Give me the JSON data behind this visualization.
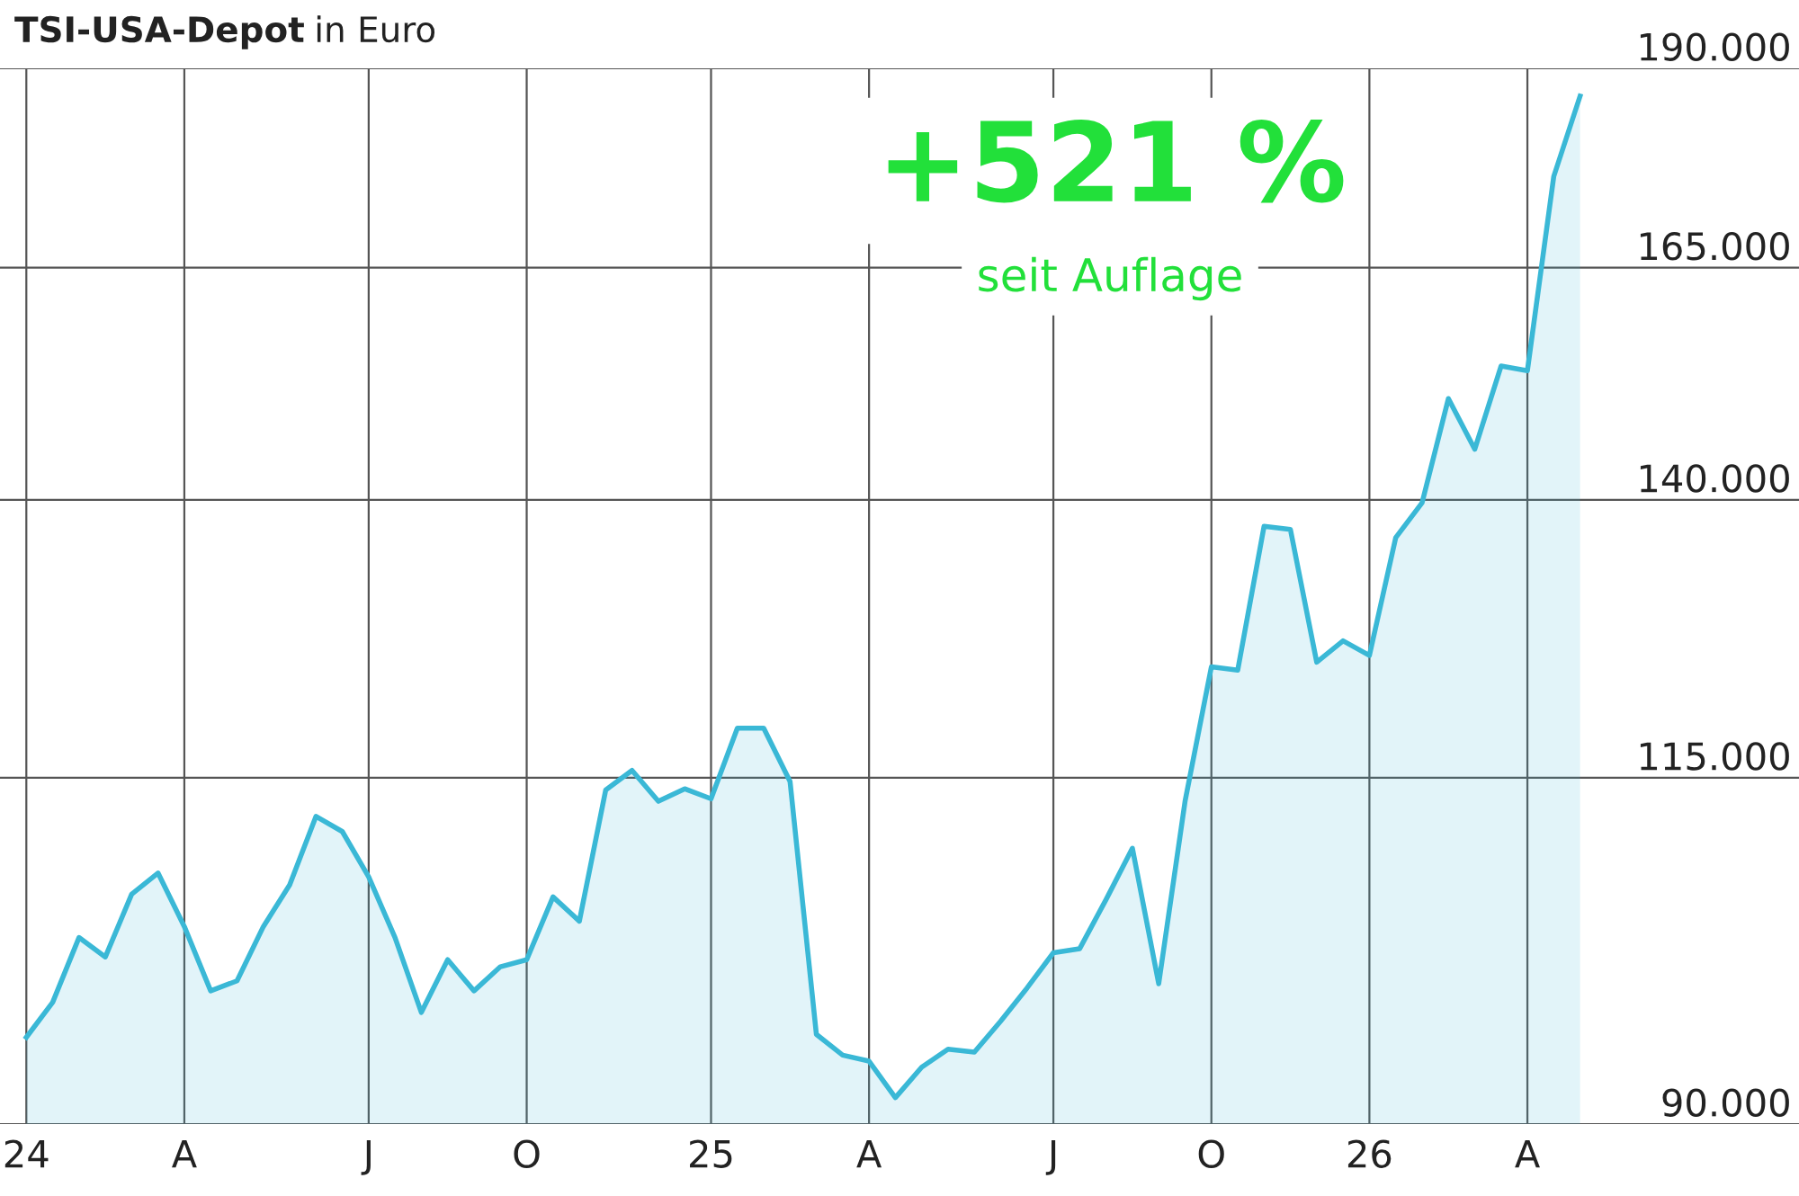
{
  "chart_data": {
    "type": "area",
    "title": "TSI-USA-Depot in Euro",
    "categories": [
      "24",
      null,
      null,
      null,
      null,
      null,
      "A",
      null,
      null,
      null,
      null,
      null,
      null,
      "J",
      null,
      null,
      null,
      null,
      null,
      "O",
      null,
      null,
      null,
      null,
      null,
      null,
      "25",
      null,
      null,
      null,
      null,
      null,
      "A",
      null,
      null,
      null,
      null,
      null,
      null,
      "J",
      null,
      null,
      null,
      null,
      null,
      "O",
      null,
      null,
      null,
      null,
      null,
      "26",
      null,
      null,
      null,
      null,
      null,
      "A",
      null,
      null
    ],
    "series": [
      {
        "color": "#3ab8d6",
        "values": [
          95700,
          98100,
          102700,
          101300,
          105900,
          107500,
          103500,
          98900,
          99600,
          103500,
          106600,
          111900,
          110700,
          107200,
          102700,
          97400,
          101100,
          98900,
          100600,
          101100,
          105700,
          103900,
          114000,
          115600,
          113100,
          114100,
          113300,
          119100,
          119100,
          114700,
          95900,
          94500,
          94100,
          91700,
          93700,
          94900,
          94700,
          96800,
          99100,
          101600,
          101900,
          105500,
          109400,
          99400,
          113100,
          124400,
          124100,
          137400,
          137100,
          124800,
          126700,
          125400,
          136300,
          139700,
          150400,
          145100,
          153900,
          153400,
          176000,
          186300
        ]
      }
    ],
    "log": true,
    "ylim": [
      90000,
      190000
    ],
    "yticks": [
      {
        "value": 90000,
        "label": "90.000"
      },
      {
        "value": 115000,
        "label": "115.000"
      },
      {
        "value": 140000,
        "label": "140.000"
      },
      {
        "value": 165000,
        "label": "165.000"
      },
      {
        "value": 190000,
        "label": "190.000"
      }
    ],
    "grid": true,
    "annotations": [
      "+521 %",
      "seit Auflage"
    ]
  }
}
